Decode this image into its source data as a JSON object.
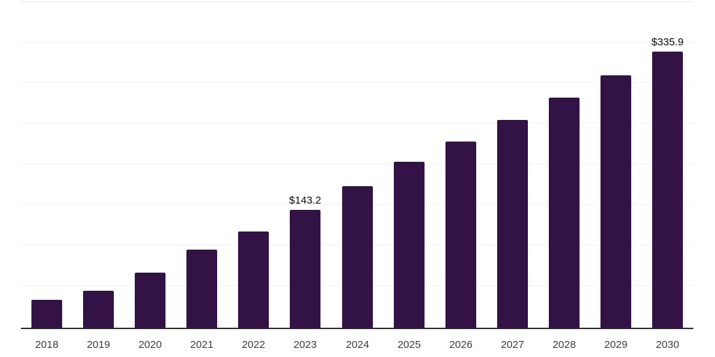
{
  "chart_data": {
    "type": "bar",
    "title": "",
    "xlabel": "",
    "ylabel": "",
    "categories": [
      "2018",
      "2019",
      "2020",
      "2021",
      "2022",
      "2023",
      "2024",
      "2025",
      "2026",
      "2027",
      "2028",
      "2029",
      "2030"
    ],
    "values": [
      34.1,
      45.2,
      66.9,
      95.3,
      117.4,
      143.2,
      172.6,
      202.0,
      226.4,
      253.0,
      280.2,
      307.7,
      335.9
    ],
    "point_labels": [
      "",
      "",
      "",
      "",
      "",
      "$143.2",
      "",
      "",
      "",
      "",
      "",
      "",
      "$335.9"
    ],
    "ylim": [
      0,
      400
    ],
    "gridline_step": 50,
    "grid": true,
    "legend_position": "none",
    "colors": {
      "bar": "#331346",
      "point_label": "#0a0a0a",
      "tick_label": "#3d3d3d",
      "axis_line": "#2e2e2e",
      "gridline": "#f0f0f0",
      "top_gridline": "#e9e9e9"
    }
  }
}
